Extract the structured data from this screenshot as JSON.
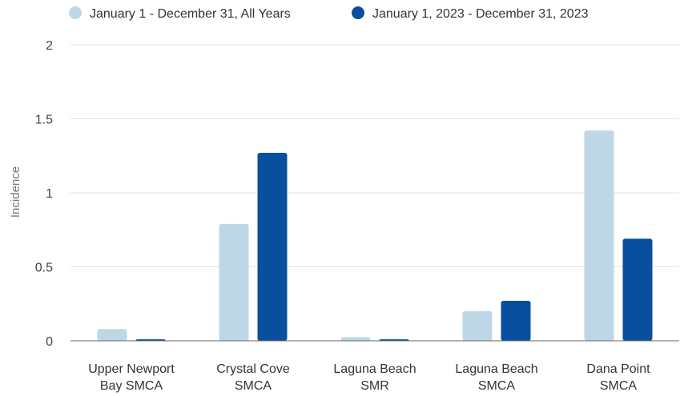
{
  "colors": {
    "series_all_years": "#bdd7e7",
    "series_2023": "#084f9d",
    "grid": "#e3e3e3",
    "axis": "#666666"
  },
  "legend": {
    "items": [
      {
        "label": "January 1 - December 31, All Years",
        "color": "#bdd7e7"
      },
      {
        "label": "January 1, 2023 - December 31, 2023",
        "color": "#084f9d"
      }
    ]
  },
  "chart_data": {
    "type": "bar",
    "title": "",
    "xlabel": "",
    "ylabel": "Incidence",
    "ylim": [
      0,
      2
    ],
    "yticks": [
      {
        "value": 0,
        "label": "0"
      },
      {
        "value": 0.5,
        "label": "0.5"
      },
      {
        "value": 1,
        "label": "1"
      },
      {
        "value": 1.5,
        "label": "1.5"
      },
      {
        "value": 2,
        "label": "2"
      }
    ],
    "grid": true,
    "legend_position": "top",
    "categories": [
      [
        "Upper Newport",
        "Bay SMCA"
      ],
      [
        "Crystal Cove",
        "SMCA"
      ],
      [
        "Laguna Beach",
        "SMR"
      ],
      [
        "Laguna Beach",
        "SMCA"
      ],
      [
        "Dana Point",
        "SMCA"
      ]
    ],
    "series": [
      {
        "name": "January 1 - December 31, All Years",
        "color": "#bdd7e7",
        "values": [
          0.08,
          0.79,
          0.025,
          0.2,
          1.42
        ]
      },
      {
        "name": "January 1, 2023 - December 31, 2023",
        "color": "#084f9d",
        "values": [
          0.01,
          1.27,
          0.01,
          0.27,
          0.69
        ]
      }
    ]
  }
}
